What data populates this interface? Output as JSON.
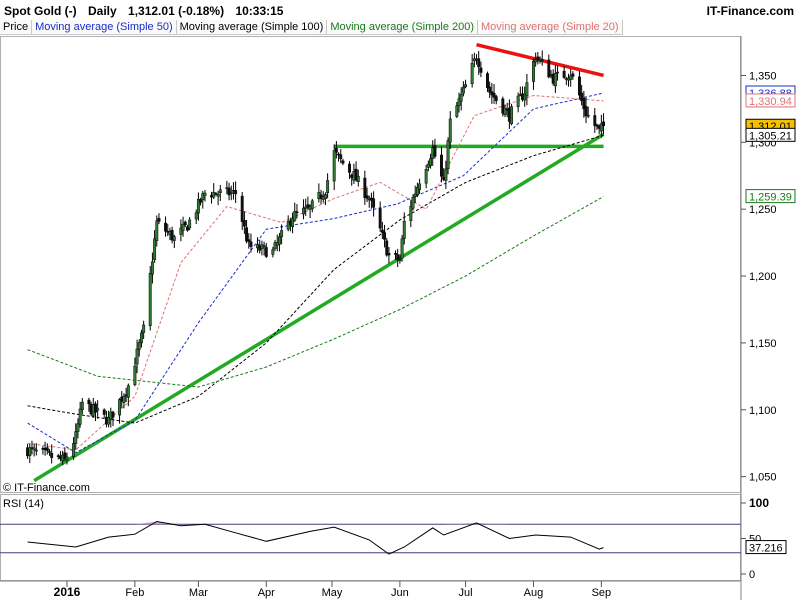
{
  "header": {
    "instrument": "Spot Gold (-)",
    "period": "Daily",
    "quote": "1,312.01 (-0.18%)",
    "time": "10:33:15",
    "brand": "IT-Finance.com"
  },
  "legend": [
    {
      "label": "Price",
      "color": "#000000"
    },
    {
      "label": "Moving average (Simple 50)",
      "color": "#1a2dc8"
    },
    {
      "label": "Moving average (Simple 100)",
      "color": "#000000"
    },
    {
      "label": "Moving average (Simple 200)",
      "color": "#1a7a1a"
    },
    {
      "label": "Moving average (Simple 20)",
      "color": "#e07070"
    }
  ],
  "copyright": "© IT-Finance.com",
  "rsi_label": "RSI (14)",
  "chart_data": [
    {
      "type": "candlestick",
      "title": "Spot Gold (-) Daily",
      "ylim": [
        1040,
        1378
      ],
      "y_ticks": [
        1050,
        1100,
        1150,
        1200,
        1250,
        1300,
        1350
      ],
      "y_tick_labels": [
        "1,050",
        "1,100",
        "1,150",
        "1,200",
        "1,250",
        "1,300",
        "1,350"
      ],
      "x_month_labels": [
        "2016",
        "Feb",
        "Mar",
        "Apr",
        "May",
        "Jun",
        "Jul",
        "Aug",
        "Sep"
      ],
      "price_anchors": [
        {
          "date": "2015-12-14",
          "close": 1070
        },
        {
          "date": "2015-12-31",
          "close": 1062
        },
        {
          "date": "2016-01-05",
          "close": 1080
        },
        {
          "date": "2016-01-08",
          "close": 1105
        },
        {
          "date": "2016-01-20",
          "close": 1092
        },
        {
          "date": "2016-01-29",
          "close": 1118
        },
        {
          "date": "2016-02-05",
          "close": 1160
        },
        {
          "date": "2016-02-11",
          "close": 1240
        },
        {
          "date": "2016-02-19",
          "close": 1228
        },
        {
          "date": "2016-02-25",
          "close": 1238
        },
        {
          "date": "2016-03-04",
          "close": 1262
        },
        {
          "date": "2016-03-11",
          "close": 1262
        },
        {
          "date": "2016-03-18",
          "close": 1262
        },
        {
          "date": "2016-03-24",
          "close": 1222
        },
        {
          "date": "2016-04-04",
          "close": 1218
        },
        {
          "date": "2016-04-13",
          "close": 1245
        },
        {
          "date": "2016-04-21",
          "close": 1250
        },
        {
          "date": "2016-04-28",
          "close": 1265
        },
        {
          "date": "2016-05-02",
          "close": 1292
        },
        {
          "date": "2016-05-11",
          "close": 1275
        },
        {
          "date": "2016-05-18",
          "close": 1258
        },
        {
          "date": "2016-05-27",
          "close": 1215
        },
        {
          "date": "2016-06-01",
          "close": 1212
        },
        {
          "date": "2016-06-03",
          "close": 1240
        },
        {
          "date": "2016-06-10",
          "close": 1272
        },
        {
          "date": "2016-06-16",
          "close": 1295
        },
        {
          "date": "2016-06-21",
          "close": 1268
        },
        {
          "date": "2016-06-24",
          "close": 1315
        },
        {
          "date": "2016-07-01",
          "close": 1342
        },
        {
          "date": "2016-07-06",
          "close": 1365
        },
        {
          "date": "2016-07-12",
          "close": 1338
        },
        {
          "date": "2016-07-21",
          "close": 1320
        },
        {
          "date": "2016-07-28",
          "close": 1338
        },
        {
          "date": "2016-08-02",
          "close": 1365
        },
        {
          "date": "2016-08-10",
          "close": 1348
        },
        {
          "date": "2016-08-18",
          "close": 1352
        },
        {
          "date": "2016-08-25",
          "close": 1322
        },
        {
          "date": "2016-08-31",
          "close": 1308
        },
        {
          "date": "2016-09-02",
          "close": 1312
        }
      ],
      "moving_averages": [
        {
          "name": "Moving average (Simple 50)",
          "color": "#1a2dc8",
          "points": [
            [
              "2015-12-14",
              1090
            ],
            [
              "2016-01-05",
              1068
            ],
            [
              "2016-02-01",
              1092
            ],
            [
              "2016-03-01",
              1165
            ],
            [
              "2016-04-01",
              1235
            ],
            [
              "2016-05-02",
              1243
            ],
            [
              "2016-05-31",
              1254
            ],
            [
              "2016-06-30",
              1275
            ],
            [
              "2016-08-01",
              1325
            ],
            [
              "2016-09-02",
              1336.88
            ]
          ]
        },
        {
          "name": "Moving average (Simple 100)",
          "color": "#000000",
          "points": [
            [
              "2015-12-14",
              1103
            ],
            [
              "2016-01-04",
              1097
            ],
            [
              "2016-02-01",
              1090
            ],
            [
              "2016-03-01",
              1110
            ],
            [
              "2016-04-01",
              1150
            ],
            [
              "2016-05-02",
              1205
            ],
            [
              "2016-06-01",
              1242
            ],
            [
              "2016-07-01",
              1270
            ],
            [
              "2016-08-01",
              1290
            ],
            [
              "2016-09-02",
              1305.21
            ]
          ]
        },
        {
          "name": "Moving average (Simple 200)",
          "color": "#1a7a1a",
          "points": [
            [
              "2015-12-14",
              1145
            ],
            [
              "2016-01-15",
              1125
            ],
            [
              "2016-03-01",
              1117
            ],
            [
              "2016-04-01",
              1132
            ],
            [
              "2016-05-02",
              1153
            ],
            [
              "2016-06-01",
              1175
            ],
            [
              "2016-07-01",
              1200
            ],
            [
              "2016-08-01",
              1230
            ],
            [
              "2016-09-02",
              1259.39
            ]
          ]
        },
        {
          "name": "Moving average (Simple 20)",
          "color": "#e07070",
          "points": [
            [
              "2015-12-14",
              1075
            ],
            [
              "2016-01-05",
              1070
            ],
            [
              "2016-02-01",
              1110
            ],
            [
              "2016-02-22",
              1210
            ],
            [
              "2016-03-14",
              1252
            ],
            [
              "2016-04-08",
              1240
            ],
            [
              "2016-05-02",
              1258
            ],
            [
              "2016-05-23",
              1270
            ],
            [
              "2016-06-13",
              1250
            ],
            [
              "2016-07-05",
              1320
            ],
            [
              "2016-08-01",
              1335
            ],
            [
              "2016-09-02",
              1330.94
            ]
          ]
        }
      ],
      "trendlines": [
        {
          "color": "#22aa22",
          "from": [
            "2015-12-17",
            1047
          ],
          "to": [
            "2016-09-02",
            1306
          ]
        },
        {
          "color": "#22aa22",
          "from": [
            "2016-05-02",
            1297
          ],
          "to": [
            "2016-09-02",
            1297
          ]
        },
        {
          "color": "#ee1111",
          "from": [
            "2016-07-06",
            1373
          ],
          "to": [
            "2016-09-02",
            1350
          ]
        }
      ],
      "right_labels": [
        {
          "text": "1,336.88",
          "value": 1336.88,
          "color": "#1a2dc8"
        },
        {
          "text": "1,330.94",
          "value": 1330.94,
          "color": "#e07070"
        },
        {
          "text": "1,312.01",
          "value": 1312.01,
          "color": "#000000",
          "background": "#f5c000"
        },
        {
          "text": "1,305.21",
          "value": 1305.21,
          "color": "#000000"
        },
        {
          "text": "1,259.39",
          "value": 1259.39,
          "color": "#1a7a1a"
        }
      ]
    },
    {
      "type": "line",
      "title": "RSI (14)",
      "ylim": [
        0,
        100
      ],
      "y_ticks": [
        0,
        50,
        100
      ],
      "y_tick_labels": [
        "0",
        "50",
        "100"
      ],
      "levels": [
        30,
        70
      ],
      "last_value": 37.216,
      "last_label": "37.216",
      "overbought_fill_color": "#c090c0",
      "points": [
        [
          "2015-12-14",
          45
        ],
        [
          "2016-01-05",
          38
        ],
        [
          "2016-01-20",
          52
        ],
        [
          "2016-02-01",
          56
        ],
        [
          "2016-02-11",
          74
        ],
        [
          "2016-02-22",
          68
        ],
        [
          "2016-03-04",
          70
        ],
        [
          "2016-03-18",
          58
        ],
        [
          "2016-04-01",
          46
        ],
        [
          "2016-04-21",
          60
        ],
        [
          "2016-05-02",
          66
        ],
        [
          "2016-05-18",
          48
        ],
        [
          "2016-05-27",
          28
        ],
        [
          "2016-06-03",
          38
        ],
        [
          "2016-06-16",
          65
        ],
        [
          "2016-06-21",
          55
        ],
        [
          "2016-07-06",
          72
        ],
        [
          "2016-07-21",
          50
        ],
        [
          "2016-08-02",
          55
        ],
        [
          "2016-08-18",
          52
        ],
        [
          "2016-08-31",
          35
        ],
        [
          "2016-09-02",
          37.216
        ]
      ]
    }
  ]
}
